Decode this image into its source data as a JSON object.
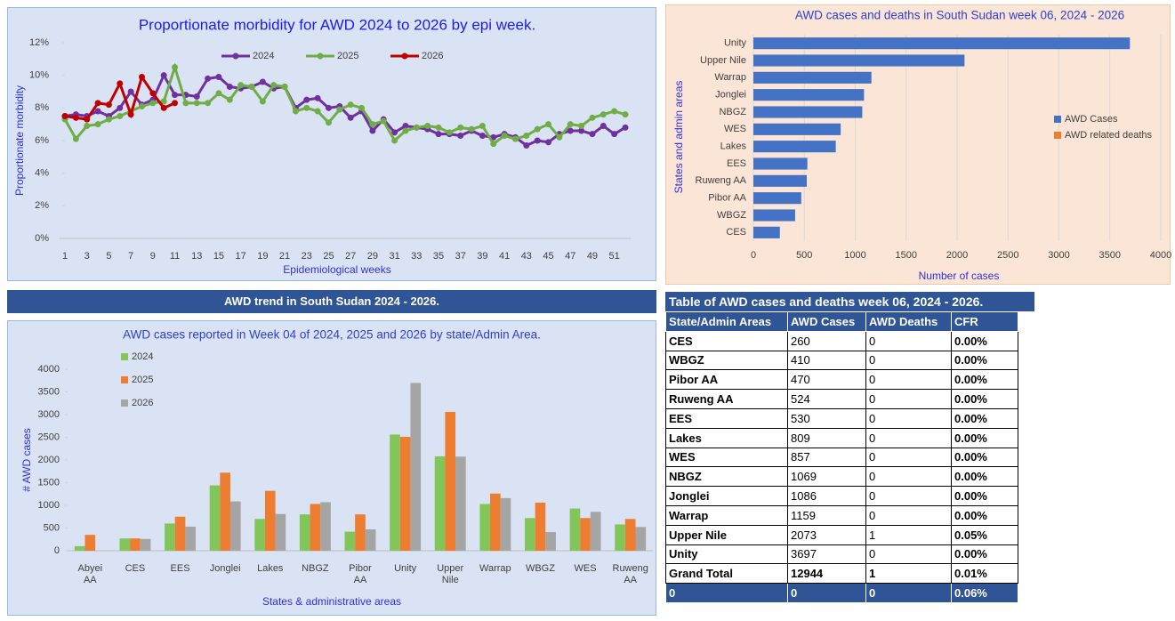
{
  "chart_data": [
    {
      "type": "line",
      "title": "Proportionate morbidity for AWD 2024 to 2026 by epi week.",
      "x_label": "Epidemiological weeks",
      "y_label": "Proportionate morbidity",
      "categories": [
        1,
        null,
        3,
        null,
        5,
        null,
        7,
        null,
        9,
        null,
        11,
        null,
        13,
        null,
        15,
        null,
        17,
        null,
        19,
        null,
        21,
        null,
        23,
        null,
        25,
        null,
        27,
        null,
        29,
        null,
        31,
        null,
        33,
        null,
        35,
        null,
        37,
        null,
        39,
        null,
        41,
        null,
        43,
        null,
        45,
        null,
        47,
        null,
        49,
        null,
        51,
        null
      ],
      "series": [
        {
          "name": "2024",
          "color": "#7030a0",
          "values": [
            7.5,
            7.6,
            7.5,
            7.8,
            7.5,
            8.0,
            9.0,
            8.2,
            8.5,
            10.0,
            8.8,
            8.8,
            8.7,
            9.8,
            9.9,
            9.3,
            9.2,
            9.3,
            9.6,
            9.2,
            9.3,
            8.0,
            8.5,
            8.6,
            8.0,
            8.1,
            7.4,
            7.8,
            6.6,
            7.3,
            6.5,
            6.9,
            6.8,
            6.7,
            6.4,
            6.4,
            6.3,
            6.6,
            6.3,
            6.2,
            6.4,
            6.2,
            5.7,
            6.0,
            5.9,
            6.4,
            6.6,
            6.6,
            6.4,
            6.9,
            6.4,
            6.8
          ]
        },
        {
          "name": "2025",
          "color": "#70ad47",
          "values": [
            7.3,
            6.1,
            6.9,
            7.0,
            7.3,
            7.5,
            7.8,
            8.1,
            8.3,
            8.4,
            10.5,
            8.3,
            8.3,
            8.3,
            8.9,
            8.5,
            9.4,
            9.3,
            8.4,
            9.4,
            9.3,
            7.8,
            8.0,
            7.8,
            7.1,
            7.9,
            8.2,
            8.0,
            7.0,
            7.2,
            6.0,
            6.6,
            6.8,
            6.9,
            6.8,
            6.5,
            6.8,
            6.7,
            6.9,
            5.8,
            6.3,
            6.1,
            6.3,
            6.7,
            7.0,
            6.2,
            7.0,
            6.9,
            7.4,
            7.6,
            7.8,
            7.6
          ]
        },
        {
          "name": "2026",
          "color": "#c00000",
          "values": [
            7.5,
            7.4,
            7.3,
            8.3,
            8.2,
            9.5,
            7.6,
            9.9,
            8.9,
            8.0,
            8.3,
            null,
            null,
            null,
            null,
            null,
            null,
            null,
            null,
            null,
            null,
            null,
            null,
            null,
            null,
            null,
            null,
            null,
            null,
            null,
            null,
            null,
            null,
            null,
            null,
            null,
            null,
            null,
            null,
            null,
            null,
            null,
            null,
            null,
            null,
            null,
            null,
            null,
            null,
            null,
            null,
            null
          ]
        }
      ],
      "ylim": [
        0,
        12
      ],
      "yticks": [
        {
          "value": 0,
          "label": "0%"
        },
        {
          "value": 2,
          "label": "2%"
        },
        {
          "value": 4,
          "label": "4%"
        },
        {
          "value": 6,
          "label": "6%"
        },
        {
          "value": 8,
          "label": "8%"
        },
        {
          "value": 10,
          "label": "10%"
        },
        {
          "value": 12,
          "label": "12%"
        }
      ],
      "grid": false,
      "legend": "top"
    },
    {
      "type": "bar",
      "orientation": "horizontal",
      "stacked": true,
      "title": "AWD cases and deaths in South Sudan week 06, 2024 - 2026",
      "x_label": "Number of cases",
      "y_label": "States and admin areas",
      "categories": [
        "Unity",
        "Upper Nile",
        "Warrap",
        "Jonglei",
        "NBGZ",
        "WES",
        "Lakes",
        "EES",
        "Ruweng AA",
        "Pibor AA",
        "WBGZ",
        "CES"
      ],
      "series": [
        {
          "name": "AWD Cases",
          "color": "#4472c4",
          "values": [
            3697,
            2073,
            1159,
            1086,
            1069,
            857,
            809,
            530,
            524,
            470,
            410,
            260
          ]
        },
        {
          "name": "AWD related deaths",
          "color": "#ed7d31",
          "values": [
            0,
            1,
            0,
            0,
            0,
            0,
            0,
            0,
            0,
            0,
            0,
            0
          ]
        }
      ],
      "xlim": [
        0,
        4000
      ],
      "xticks": [
        0,
        500,
        1000,
        1500,
        2000,
        2500,
        3000,
        3500,
        4000
      ],
      "grid": true,
      "legend": "right"
    },
    {
      "type": "bar",
      "orientation": "vertical",
      "stacked": false,
      "title": "AWD cases reported in Week 04 of 2024, 2025 and 2026 by state/Admin Area.",
      "x_label": "States & administrative areas",
      "y_label": "# AWD cases",
      "categories": [
        "Abyei AA",
        "CES",
        "EES",
        "Jonglei",
        "Lakes",
        "NBGZ",
        "Pibor AA",
        "Unity",
        "Upper Nile",
        "Warrap",
        "WBGZ",
        "WES",
        "Ruweng AA"
      ],
      "series": [
        {
          "name": "2024",
          "color": "#82c65a",
          "values": [
            100,
            270,
            600,
            1440,
            700,
            800,
            420,
            2560,
            2080,
            1030,
            720,
            930,
            580
          ]
        },
        {
          "name": "2025",
          "color": "#ed7d31",
          "values": [
            350,
            270,
            750,
            1720,
            1320,
            1030,
            800,
            2510,
            3060,
            1260,
            1060,
            720,
            700
          ]
        },
        {
          "name": "2026",
          "color": "#a5a5a5",
          "values": [
            0,
            260,
            530,
            1086,
            809,
            1069,
            470,
            3697,
            2073,
            1159,
            410,
            857,
            524
          ]
        }
      ],
      "ylim": [
        0,
        4000
      ],
      "yticks": [
        0,
        500,
        1000,
        1500,
        2000,
        2500,
        3000,
        3500,
        4000
      ],
      "grid": false,
      "legend": "top-left"
    }
  ],
  "banner": {
    "title": "AWD trend in South Sudan 2024 - 2026."
  },
  "table": {
    "title": "Table of AWD cases and deaths week 06, 2024 - 2026.",
    "header": [
      "State/Admin Areas",
      "AWD Cases",
      "AWD Deaths",
      "CFR"
    ],
    "rows": [
      [
        "CES",
        260,
        0,
        "0.00%"
      ],
      [
        "WBGZ",
        410,
        0,
        "0.00%"
      ],
      [
        "Pibor AA",
        470,
        0,
        "0.00%"
      ],
      [
        "Ruweng AA",
        524,
        0,
        "0.00%"
      ],
      [
        "EES",
        530,
        0,
        "0.00%"
      ],
      [
        "Lakes",
        809,
        0,
        "0.00%"
      ],
      [
        "WES",
        857,
        0,
        "0.00%"
      ],
      [
        "NBGZ",
        1069,
        0,
        "0.00%"
      ],
      [
        "Jonglei",
        1086,
        0,
        "0.00%"
      ],
      [
        "Warrap",
        1159,
        0,
        "0.00%"
      ],
      [
        "Upper Nile",
        2073,
        1,
        "0.05%"
      ],
      [
        "Unity",
        3697,
        0,
        "0.00%"
      ],
      [
        "Grand Total",
        12944,
        1,
        "0.01%"
      ],
      [
        0,
        0,
        0,
        "0.06%"
      ]
    ]
  }
}
